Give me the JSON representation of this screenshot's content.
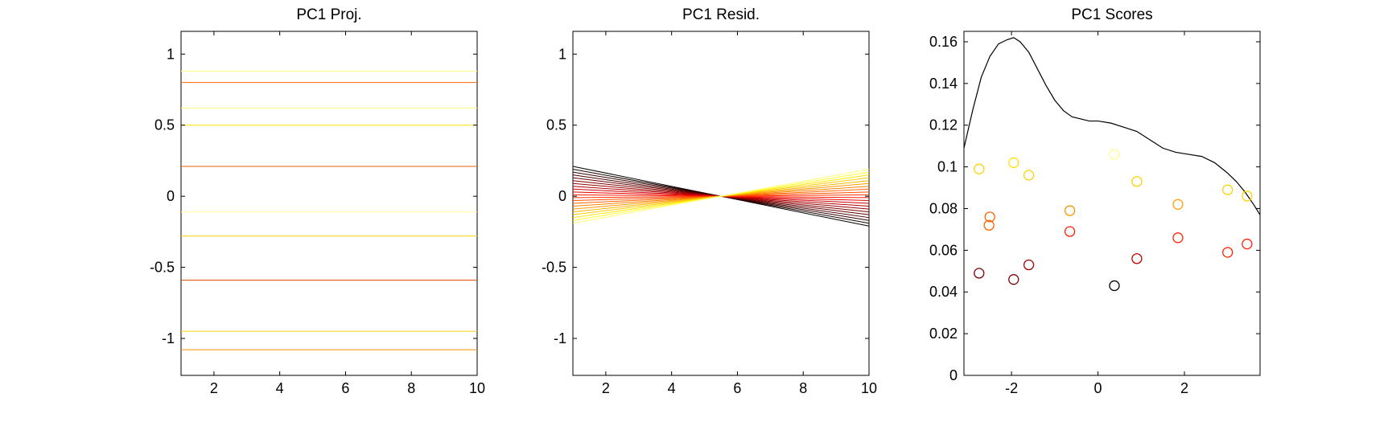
{
  "chart_data": [
    {
      "type": "line",
      "title": "PC1 Proj.",
      "xlim": [
        1,
        10
      ],
      "ylim": [
        -1.26,
        1.16
      ],
      "xticks": [
        2,
        4,
        6,
        8,
        10
      ],
      "xtick_labels": [
        "2",
        "4",
        "6",
        "8",
        "10"
      ],
      "yticks": [
        1,
        0.5,
        0,
        -0.5,
        -1
      ],
      "ytick_labels": [
        "1",
        "0.5",
        "0",
        "-0.5",
        "-1"
      ],
      "grid": false,
      "series": [
        {
          "color": "#ffff80",
          "y": [
            0.88,
            0.88
          ]
        },
        {
          "color": "#ff6000",
          "y": [
            0.8,
            0.8
          ]
        },
        {
          "color": "#ffff80",
          "y": [
            0.62,
            0.62
          ]
        },
        {
          "color": "#ffe000",
          "y": [
            0.5,
            0.5
          ]
        },
        {
          "color": "#e06000",
          "y": [
            0.21,
            0.21
          ]
        },
        {
          "color": "#ffffa0",
          "y": [
            -0.11,
            -0.11
          ]
        },
        {
          "color": "#ffd000",
          "y": [
            -0.28,
            -0.28
          ]
        },
        {
          "color": "#e05000",
          "y": [
            -0.59,
            -0.59
          ]
        },
        {
          "color": "#ffd000",
          "y": [
            -0.95,
            -0.95
          ]
        },
        {
          "color": "#ff9000",
          "y": [
            -1.08,
            -1.08
          ]
        }
      ],
      "x": [
        1,
        10
      ]
    },
    {
      "type": "line",
      "title": "PC1 Resid.",
      "xlim": [
        1,
        10
      ],
      "ylim": [
        -1.26,
        1.16
      ],
      "xticks": [
        2,
        4,
        6,
        8,
        10
      ],
      "xtick_labels": [
        "2",
        "4",
        "6",
        "8",
        "10"
      ],
      "yticks": [
        1,
        0.5,
        0,
        -0.5,
        -1
      ],
      "ytick_labels": [
        "1",
        "0.5",
        "0",
        "-0.5",
        "-1"
      ],
      "grid": false,
      "x": [
        1,
        10
      ],
      "series": [
        {
          "color": "#000000",
          "y": [
            0.21,
            -0.21
          ]
        },
        {
          "color": "#1a0000",
          "y": [
            0.19,
            -0.19
          ]
        },
        {
          "color": "#330000",
          "y": [
            0.17,
            -0.17
          ]
        },
        {
          "color": "#4d0000",
          "y": [
            0.15,
            -0.15
          ]
        },
        {
          "color": "#660000",
          "y": [
            0.13,
            -0.13
          ]
        },
        {
          "color": "#800000",
          "y": [
            0.11,
            -0.11
          ]
        },
        {
          "color": "#990000",
          "y": [
            0.09,
            -0.09
          ]
        },
        {
          "color": "#b30000",
          "y": [
            0.07,
            -0.07
          ]
        },
        {
          "color": "#cc0000",
          "y": [
            0.05,
            -0.05
          ]
        },
        {
          "color": "#e60000",
          "y": [
            0.03,
            -0.03
          ]
        },
        {
          "color": "#ff1a00",
          "y": [
            0.01,
            -0.01
          ]
        },
        {
          "color": "#ff3300",
          "y": [
            -0.01,
            0.01
          ]
        },
        {
          "color": "#ff4d00",
          "y": [
            -0.03,
            0.03
          ]
        },
        {
          "color": "#ff6600",
          "y": [
            -0.05,
            0.05
          ]
        },
        {
          "color": "#ff8000",
          "y": [
            -0.07,
            0.07
          ]
        },
        {
          "color": "#ff9900",
          "y": [
            -0.09,
            0.09
          ]
        },
        {
          "color": "#ffb300",
          "y": [
            -0.11,
            0.11
          ]
        },
        {
          "color": "#ffcc00",
          "y": [
            -0.13,
            0.13
          ]
        },
        {
          "color": "#ffe600",
          "y": [
            -0.15,
            0.15
          ]
        },
        {
          "color": "#ffff33",
          "y": [
            -0.17,
            0.17
          ]
        },
        {
          "color": "#ffff80",
          "y": [
            -0.19,
            0.19
          ]
        }
      ]
    },
    {
      "type": "scatter",
      "title": "PC1 Scores",
      "xlim": [
        -3.1,
        3.75
      ],
      "ylim": [
        0,
        0.165
      ],
      "xticks": [
        -2,
        0,
        2
      ],
      "xtick_labels": [
        "-2",
        "0",
        "2"
      ],
      "yticks": [
        0,
        0.02,
        0.04,
        0.06,
        0.08,
        0.1,
        0.12,
        0.14,
        0.16
      ],
      "ytick_labels": [
        "0",
        "0.02",
        "0.04",
        "0.06",
        "0.08",
        "0.1",
        "0.12",
        "0.14",
        "0.16"
      ],
      "grid": false,
      "points": [
        {
          "x": -2.75,
          "y": 0.049,
          "color": "#800000"
        },
        {
          "x": -1.95,
          "y": 0.046,
          "color": "#800000"
        },
        {
          "x": -1.6,
          "y": 0.053,
          "color": "#a00000"
        },
        {
          "x": 0.38,
          "y": 0.043,
          "color": "#000000"
        },
        {
          "x": 0.9,
          "y": 0.056,
          "color": "#c00000"
        },
        {
          "x": -0.65,
          "y": 0.069,
          "color": "#ff2000"
        },
        {
          "x": 1.85,
          "y": 0.066,
          "color": "#ff2000"
        },
        {
          "x": 3.0,
          "y": 0.059,
          "color": "#ff2000"
        },
        {
          "x": 3.45,
          "y": 0.063,
          "color": "#ff2000"
        },
        {
          "x": -2.5,
          "y": 0.076,
          "color": "#ff6000"
        },
        {
          "x": -2.52,
          "y": 0.072,
          "color": "#ff6000"
        },
        {
          "x": -0.65,
          "y": 0.079,
          "color": "#ff9000"
        },
        {
          "x": 1.85,
          "y": 0.082,
          "color": "#ffa000"
        },
        {
          "x": -2.75,
          "y": 0.099,
          "color": "#ffd000"
        },
        {
          "x": -1.95,
          "y": 0.102,
          "color": "#ffe000"
        },
        {
          "x": -1.6,
          "y": 0.096,
          "color": "#ffd000"
        },
        {
          "x": 0.38,
          "y": 0.106,
          "color": "#ffff90"
        },
        {
          "x": 0.9,
          "y": 0.093,
          "color": "#ffd000"
        },
        {
          "x": 3.0,
          "y": 0.089,
          "color": "#ffd000"
        },
        {
          "x": 3.45,
          "y": 0.086,
          "color": "#ffd000"
        }
      ],
      "curve": {
        "color": "#000000",
        "x": [
          -3.1,
          -2.9,
          -2.7,
          -2.5,
          -2.3,
          -2.1,
          -1.95,
          -1.8,
          -1.6,
          -1.4,
          -1.2,
          -1.0,
          -0.8,
          -0.6,
          -0.4,
          -0.2,
          0.0,
          0.3,
          0.6,
          0.9,
          1.2,
          1.5,
          1.8,
          2.1,
          2.4,
          2.7,
          3.0,
          3.2,
          3.4,
          3.6,
          3.75
        ],
        "y": [
          0.109,
          0.127,
          0.143,
          0.153,
          0.159,
          0.161,
          0.162,
          0.16,
          0.155,
          0.147,
          0.139,
          0.132,
          0.127,
          0.124,
          0.123,
          0.122,
          0.122,
          0.121,
          0.119,
          0.117,
          0.113,
          0.109,
          0.107,
          0.106,
          0.105,
          0.102,
          0.097,
          0.093,
          0.088,
          0.082,
          0.077
        ]
      }
    }
  ]
}
